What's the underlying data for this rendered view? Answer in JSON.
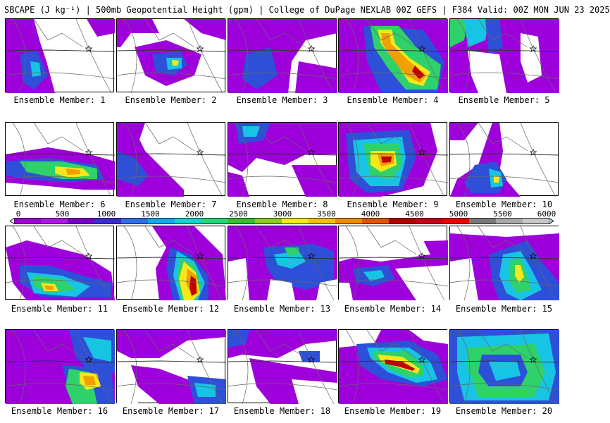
{
  "header": {
    "title": "SBCAPE (J kg⁻¹) | 500mb Geopotential Height (gpm) | College of DuPage NEXLAB 00Z GEFS | F384 Valid: 00Z MON JUN 23 2025"
  },
  "colorbar": {
    "ticks": [
      "0",
      "500",
      "1000",
      "1500",
      "2000",
      "2500",
      "3000",
      "3500",
      "4000",
      "4500",
      "5000",
      "5500",
      "6000"
    ],
    "range": [
      0,
      6000
    ],
    "colors": [
      "#f3e6ff",
      "#a000d8",
      "#b015e6",
      "#7a00c8",
      "#3a2cd0",
      "#2f6fe6",
      "#14a8ec",
      "#12d4d4",
      "#22d878",
      "#38c02c",
      "#8ccc1c",
      "#f4ec12",
      "#f6c00a",
      "#f08e00",
      "#e05400",
      "#b40000",
      "#c80018",
      "#f00000",
      "#7a7a7a",
      "#a8a8a8",
      "#c8c8c8",
      "#a8c8dc"
    ]
  },
  "panels": [
    {
      "label": "Ensemble Member: 1"
    },
    {
      "label": "Ensemble Member: 2"
    },
    {
      "label": "Ensemble Member: 3"
    },
    {
      "label": "Ensemble Member: 4"
    },
    {
      "label": "Ensemble Member: 5"
    },
    {
      "label": "Ensemble Member: 6"
    },
    {
      "label": "Ensemble Member: 7"
    },
    {
      "label": "Ensemble Member: 8"
    },
    {
      "label": "Ensemble Member: 9"
    },
    {
      "label": "Ensemble Member: 10"
    },
    {
      "label": "Ensemble Member: 11"
    },
    {
      "label": "Ensemble Member: 12"
    },
    {
      "label": "Ensemble Member: 13"
    },
    {
      "label": "Ensemble Member: 14"
    },
    {
      "label": "Ensemble Member: 15"
    },
    {
      "label": "Ensemble Member: 16"
    },
    {
      "label": "Ensemble Member: 17"
    },
    {
      "label": "Ensemble Member: 18"
    },
    {
      "label": "Ensemble Member: 19"
    },
    {
      "label": "Ensemble Member: 20"
    }
  ]
}
